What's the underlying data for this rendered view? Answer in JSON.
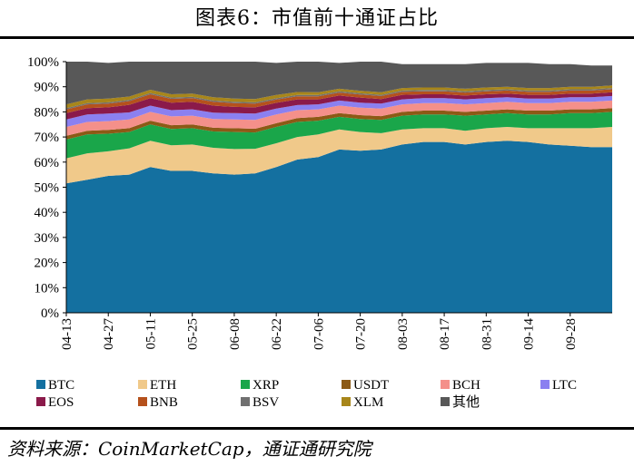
{
  "header": {
    "title": "图表6：市值前十通证占比"
  },
  "footer": {
    "source": "资料来源：CoinMarketCap，通证通研究院"
  },
  "chart_data": {
    "type": "area",
    "stacked": true,
    "percent_stacked": true,
    "title": "图表6：市值前十通证占比",
    "xlabel": "",
    "ylabel": "",
    "ylim": [
      0,
      100
    ],
    "y_ticks": [
      "0%",
      "10%",
      "20%",
      "30%",
      "40%",
      "50%",
      "60%",
      "70%",
      "80%",
      "90%",
      "100%"
    ],
    "x_tick_labels": [
      "04-13",
      "04-27",
      "05-11",
      "05-25",
      "06-08",
      "06-22",
      "07-06",
      "07-20",
      "08-03",
      "08-17",
      "08-31",
      "09-14",
      "09-28"
    ],
    "grid": false,
    "legend_position": "bottom",
    "x_dates": [
      "04-13",
      "04-20",
      "04-27",
      "05-04",
      "05-11",
      "05-18",
      "05-25",
      "06-01",
      "06-08",
      "06-15",
      "06-22",
      "06-29",
      "07-06",
      "07-13",
      "07-20",
      "07-27",
      "08-03",
      "08-10",
      "08-17",
      "08-24",
      "08-31",
      "09-07",
      "09-14",
      "09-21",
      "09-28",
      "10-05",
      "10-09"
    ],
    "series": [
      {
        "name": "BTC",
        "color": "#1470a0",
        "values": [
          51.5,
          53,
          54.5,
          55,
          58,
          56.5,
          56.5,
          55.5,
          55,
          55.5,
          58,
          61,
          62,
          65,
          64.5,
          65,
          67,
          68,
          68,
          67,
          68,
          68.5,
          68,
          67,
          66.5,
          66,
          66
        ]
      },
      {
        "name": "ETH",
        "color": "#f0c98a",
        "values": [
          10,
          10.5,
          9.8,
          10.5,
          10.5,
          10.2,
          10.5,
          10.2,
          10.2,
          9.8,
          9.5,
          9,
          9,
          8,
          7.5,
          6.5,
          6,
          5.5,
          5.5,
          5.5,
          5.5,
          5.5,
          5.5,
          6.5,
          7,
          7.5,
          8
        ]
      },
      {
        "name": "XRP",
        "color": "#1aa64a",
        "values": [
          7.5,
          7.5,
          7,
          6.5,
          6.5,
          6.5,
          6.5,
          6.5,
          6.8,
          6.5,
          6.5,
          6,
          5.5,
          5,
          5.2,
          5.3,
          5.5,
          5.5,
          5.5,
          6,
          5.5,
          5.5,
          5.5,
          5.5,
          6,
          6,
          6
        ]
      },
      {
        "name": "USDT",
        "color": "#8c5a16",
        "values": [
          1.5,
          1.5,
          1.5,
          1.5,
          1.5,
          1.5,
          1.5,
          1.5,
          1.5,
          1.5,
          1.5,
          1.5,
          1.5,
          1.5,
          1.5,
          1.5,
          1.5,
          1.5,
          1.5,
          1.5,
          1.5,
          1.5,
          1.5,
          1.5,
          1.5,
          1.5,
          1.5
        ]
      },
      {
        "name": "BCH",
        "color": "#f4908a",
        "values": [
          3.5,
          3.5,
          3.5,
          3.5,
          3.5,
          3.5,
          3.5,
          3.5,
          3.5,
          3.5,
          3.5,
          3.2,
          3,
          3,
          3,
          3,
          3,
          3,
          3,
          3,
          3,
          3,
          3,
          3,
          3,
          3,
          3
        ]
      },
      {
        "name": "LTC",
        "color": "#8b80f0",
        "values": [
          3,
          3,
          3,
          2.8,
          2.5,
          2.5,
          2.5,
          2.5,
          2.5,
          2.5,
          2.3,
          2,
          2,
          2,
          2,
          2,
          2,
          2,
          2,
          2,
          2,
          1.8,
          1.8,
          1.8,
          1.8,
          1.8,
          1.8
        ]
      },
      {
        "name": "EOS",
        "color": "#8b1a4a",
        "values": [
          2.5,
          2.5,
          2.5,
          3,
          3,
          3,
          3,
          2.8,
          2.5,
          2.5,
          2.3,
          2.3,
          2,
          2,
          2,
          1.8,
          1.8,
          1.5,
          1.5,
          1.5,
          1.5,
          1.5,
          1.5,
          1.5,
          1.5,
          1.5,
          1.5
        ]
      },
      {
        "name": "BNB",
        "color": "#b5511c",
        "values": [
          1.5,
          1.5,
          1.5,
          1.5,
          1.5,
          1.5,
          1.5,
          1.5,
          1.5,
          1.5,
          1.3,
          1.2,
          1.2,
          1.2,
          1.2,
          1.2,
          1.2,
          1.2,
          1.2,
          1.2,
          1.2,
          1.2,
          1.2,
          1.2,
          1.2,
          1.2,
          1.2
        ]
      },
      {
        "name": "BSV",
        "color": "#707070",
        "values": [
          0.5,
          0.5,
          0.5,
          0.5,
          0.5,
          0.5,
          0.5,
          0.5,
          0.5,
          0.5,
          0.5,
          0.5,
          0.5,
          0.5,
          0.5,
          0.5,
          0.5,
          0.5,
          0.5,
          0.5,
          0.5,
          0.5,
          0.5,
          0.5,
          0.5,
          0.5,
          0.5
        ]
      },
      {
        "name": "XLM",
        "color": "#a8861a",
        "values": [
          1.5,
          1.5,
          1.5,
          1.3,
          1.3,
          1.3,
          1.3,
          1.3,
          1.3,
          1.3,
          1.3,
          1.2,
          1.1,
          1,
          1,
          1,
          1,
          1,
          1,
          1,
          1,
          1,
          1,
          1,
          1,
          1,
          1
        ]
      },
      {
        "name": "其他",
        "color": "#585858",
        "values": [
          17,
          15,
          14.2,
          14.4,
          11.7,
          13,
          13,
          14.2,
          14.7,
          15.4,
          12.8,
          12.1,
          15.2,
          10.3,
          11.6,
          12.2,
          9.5,
          9.3,
          9.3,
          9.8,
          9.8,
          9.5,
          10,
          9.5,
          9,
          8.5,
          8
        ]
      }
    ]
  }
}
